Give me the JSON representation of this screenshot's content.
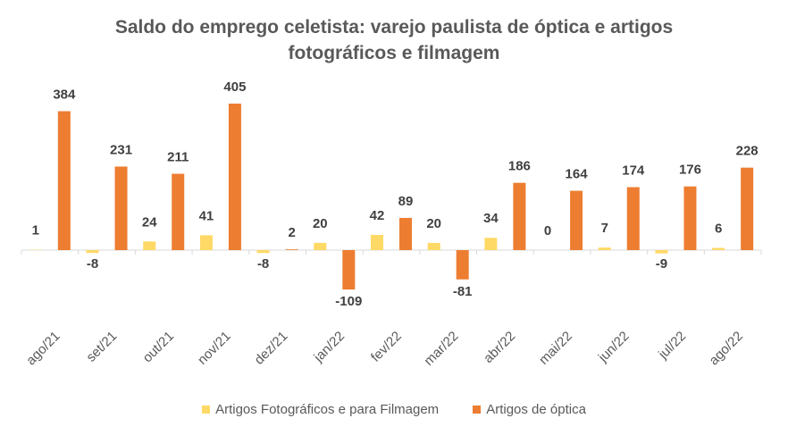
{
  "chart_data": {
    "type": "bar",
    "title_lines": [
      "Saldo do emprego celetista: varejo paulista de óptica e artigos",
      "fotográficos e filmagem"
    ],
    "categories": [
      "ago/21",
      "set/21",
      "out/21",
      "nov/21",
      "dez/21",
      "jan/22",
      "fev/22",
      "mar/22",
      "abr/22",
      "mai/22",
      "jun/22",
      "jul/22",
      "ago/22"
    ],
    "series": [
      {
        "name": "Artigos Fotográficos e para Filmagem",
        "color": "#FFD966",
        "values": [
          1,
          -8,
          24,
          41,
          -8,
          20,
          42,
          20,
          34,
          0,
          7,
          -9,
          6
        ]
      },
      {
        "name": "Artigos de óptica",
        "color": "#ED7D31",
        "values": [
          384,
          231,
          211,
          405,
          2,
          -109,
          89,
          -81,
          186,
          164,
          174,
          176,
          228
        ]
      }
    ],
    "grid": false,
    "legend_position": "bottom"
  }
}
